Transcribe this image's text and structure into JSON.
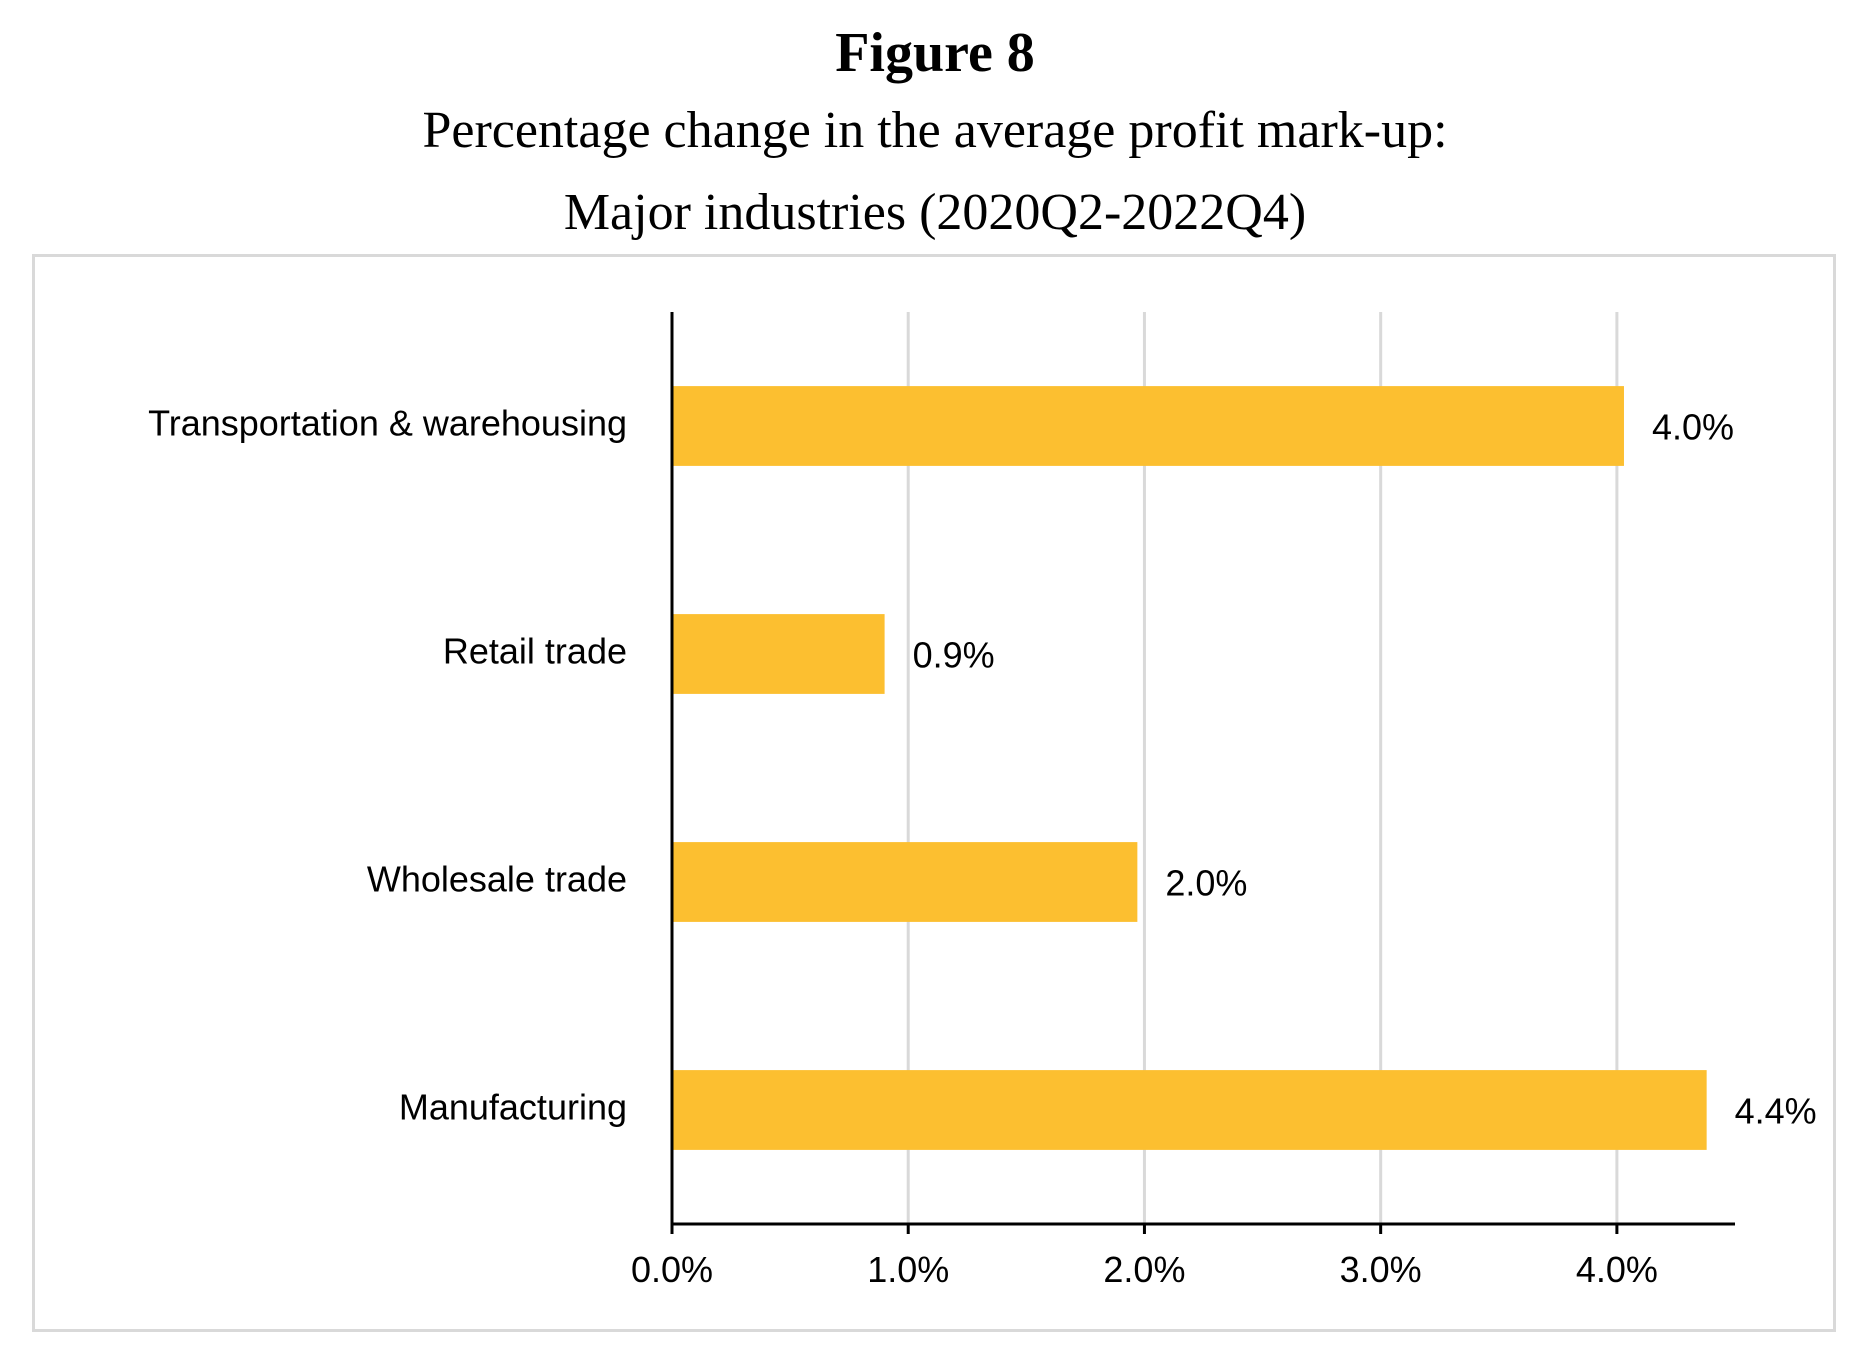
{
  "figure": {
    "label": "Figure 8",
    "title": "Percentage change in the average profit mark-up:",
    "subtitle": "Major industries (2020Q2-2022Q4)"
  },
  "chart_data": {
    "type": "bar",
    "orientation": "horizontal",
    "categories": [
      "Transportation & warehousing",
      "Retail trade",
      "Wholesale trade",
      "Manufacturing"
    ],
    "values": [
      4.03,
      0.9,
      1.97,
      4.38
    ],
    "data_labels": [
      "4.0%",
      "0.9%",
      "2.0%",
      "4.4%"
    ],
    "x_ticks": [
      0,
      1,
      2,
      3,
      4
    ],
    "x_tick_labels": [
      "0.0%",
      "1.0%",
      "2.0%",
      "3.0%",
      "4.0%"
    ],
    "xlim": [
      0,
      4.5
    ],
    "xlabel": "",
    "ylabel": "",
    "grid": "vertical",
    "legend": "none",
    "bar_color": "#FCBF30",
    "gridline_color": "#d9d9d9",
    "axis_color": "#000000"
  }
}
